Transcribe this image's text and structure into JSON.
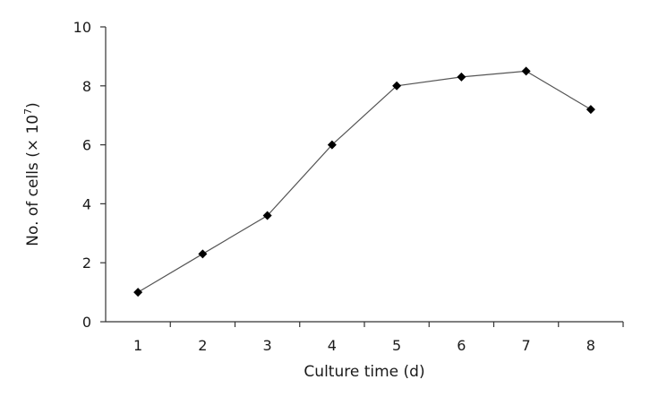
{
  "chart_data": {
    "type": "line",
    "title": "",
    "xlabel": "Culture time (d)",
    "ylabel": {
      "prefix": "No. of cells (× 10",
      "superscript": "7",
      "suffix": ")"
    },
    "categories": [
      "1",
      "2",
      "3",
      "4",
      "5",
      "6",
      "7",
      "8"
    ],
    "x": [
      1,
      2,
      3,
      4,
      5,
      6,
      7,
      8
    ],
    "values": [
      1.0,
      2.3,
      3.6,
      6.0,
      8.0,
      8.3,
      8.5,
      7.2
    ],
    "ylim": [
      0,
      10
    ],
    "yticks": [
      0,
      2,
      4,
      6,
      8,
      10
    ],
    "grid": false,
    "marker": "diamond",
    "line_color": "#555555",
    "marker_color": "#000000"
  }
}
